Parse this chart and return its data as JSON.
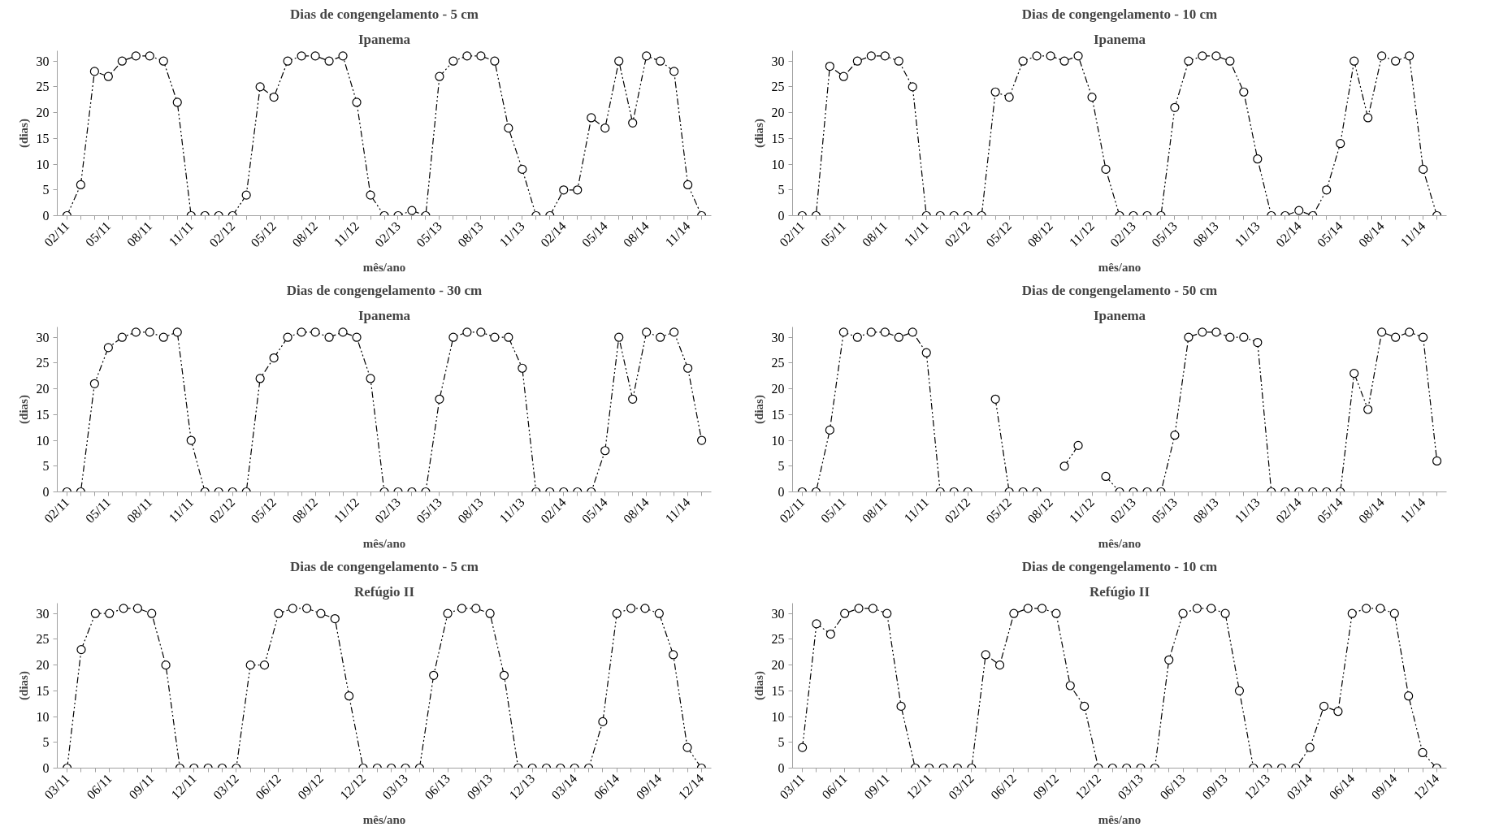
{
  "chart_data": [
    {
      "type": "line",
      "title": "Dias de congengelamento - 5 cm",
      "subtitle": "Ipanema",
      "xlabel": "mês/ano",
      "ylabel": "(dias)",
      "categories": [
        "02/11",
        null,
        null,
        "05/11",
        null,
        null,
        "08/11",
        null,
        null,
        "11/11",
        null,
        null,
        "02/12",
        null,
        null,
        "05/12",
        null,
        null,
        "08/12",
        null,
        null,
        "11/12",
        null,
        null,
        "02/13",
        null,
        null,
        "05/13",
        null,
        null,
        "08/13",
        null,
        null,
        "11/13",
        null,
        null,
        "02/14",
        null,
        null,
        "05/14",
        null,
        null,
        "08/14",
        null,
        null,
        "11/14",
        null
      ],
      "series": [
        {
          "color": "#000000",
          "values": [
            0,
            6,
            28,
            27,
            30,
            31,
            31,
            30,
            22,
            0,
            0,
            0,
            0,
            4,
            25,
            23,
            30,
            31,
            31,
            30,
            31,
            22,
            4,
            0,
            0,
            1,
            0,
            27,
            30,
            31,
            31,
            30,
            17,
            9,
            0,
            0,
            5,
            5,
            19,
            17,
            30,
            18,
            31,
            30,
            28,
            6,
            0
          ]
        }
      ],
      "ylim": [
        0,
        32
      ],
      "yticks": [
        0,
        5,
        10,
        15,
        20,
        25,
        30
      ],
      "marker": "circle",
      "line_style": "dashed"
    },
    {
      "type": "line",
      "title": "Dias de congengelamento - 10 cm",
      "subtitle": "Ipanema",
      "xlabel": "mês/ano",
      "ylabel": "(dias)",
      "categories": [
        "02/11",
        null,
        null,
        "05/11",
        null,
        null,
        "08/11",
        null,
        null,
        "11/11",
        null,
        null,
        "02/12",
        null,
        null,
        "05/12",
        null,
        null,
        "08/12",
        null,
        null,
        "11/12",
        null,
        null,
        "02/13",
        null,
        null,
        "05/13",
        null,
        null,
        "08/13",
        null,
        null,
        "11/13",
        null,
        null,
        "02/14",
        null,
        null,
        "05/14",
        null,
        null,
        "08/14",
        null,
        null,
        "11/14",
        null
      ],
      "series": [
        {
          "color": "#000000",
          "values": [
            0,
            0,
            29,
            27,
            30,
            31,
            31,
            30,
            25,
            0,
            0,
            0,
            0,
            0,
            24,
            23,
            30,
            31,
            31,
            30,
            31,
            23,
            9,
            0,
            0,
            0,
            0,
            21,
            30,
            31,
            31,
            30,
            24,
            11,
            0,
            0,
            1,
            0,
            5,
            14,
            30,
            19,
            31,
            30,
            31,
            9,
            0
          ]
        }
      ],
      "ylim": [
        0,
        32
      ],
      "yticks": [
        0,
        5,
        10,
        15,
        20,
        25,
        30
      ],
      "marker": "circle",
      "line_style": "dashed"
    },
    {
      "type": "line",
      "title": "Dias de congengelamento - 30 cm",
      "subtitle": "Ipanema",
      "xlabel": "mês/ano",
      "ylabel": "(dias)",
      "categories": [
        "02/11",
        null,
        null,
        "05/11",
        null,
        null,
        "08/11",
        null,
        null,
        "11/11",
        null,
        null,
        "02/12",
        null,
        null,
        "05/12",
        null,
        null,
        "08/12",
        null,
        null,
        "11/12",
        null,
        null,
        "02/13",
        null,
        null,
        "05/13",
        null,
        null,
        "08/13",
        null,
        null,
        "11/13",
        null,
        null,
        "02/14",
        null,
        null,
        "05/14",
        null,
        null,
        "08/14",
        null,
        null,
        "11/14",
        null
      ],
      "series": [
        {
          "color": "#000000",
          "values": [
            0,
            0,
            21,
            28,
            30,
            31,
            31,
            30,
            31,
            10,
            0,
            0,
            0,
            0,
            22,
            26,
            30,
            31,
            31,
            30,
            31,
            30,
            22,
            0,
            0,
            0,
            0,
            18,
            30,
            31,
            31,
            30,
            30,
            24,
            0,
            0,
            0,
            0,
            0,
            8,
            30,
            18,
            31,
            30,
            31,
            24,
            10
          ]
        }
      ],
      "ylim": [
        0,
        32
      ],
      "yticks": [
        0,
        5,
        10,
        15,
        20,
        25,
        30
      ],
      "marker": "circle",
      "line_style": "dashed"
    },
    {
      "type": "line",
      "title": "Dias de congengelamento - 50 cm",
      "subtitle": "Ipanema",
      "xlabel": "mês/ano",
      "ylabel": "(dias)",
      "categories": [
        "02/11",
        null,
        null,
        "05/11",
        null,
        null,
        "08/11",
        null,
        null,
        "11/11",
        null,
        null,
        "02/12",
        null,
        null,
        "05/12",
        null,
        null,
        "08/12",
        null,
        null,
        "11/12",
        null,
        null,
        "02/13",
        null,
        null,
        "05/13",
        null,
        null,
        "08/13",
        null,
        null,
        "11/13",
        null,
        null,
        "02/14",
        null,
        null,
        "05/14",
        null,
        null,
        "08/14",
        null,
        null,
        "11/14",
        null
      ],
      "series": [
        {
          "color": "#000000",
          "values": [
            0,
            0,
            12,
            31,
            30,
            31,
            31,
            30,
            31,
            27,
            0,
            0,
            0,
            null,
            18,
            0,
            0,
            0,
            null,
            5,
            9,
            null,
            3,
            0,
            0,
            0,
            0,
            11,
            30,
            31,
            31,
            30,
            30,
            29,
            0,
            0,
            0,
            0,
            0,
            0,
            23,
            16,
            31,
            30,
            31,
            30,
            6
          ]
        }
      ],
      "ylim": [
        0,
        32
      ],
      "yticks": [
        0,
        5,
        10,
        15,
        20,
        25,
        30
      ],
      "marker": "circle",
      "line_style": "dashed"
    },
    {
      "type": "line",
      "title": "Dias de congengelamento - 5 cm",
      "subtitle": "Refúgio II",
      "xlabel": "mês/ano",
      "ylabel": "(dias)",
      "categories": [
        "03/11",
        null,
        null,
        "06/11",
        null,
        null,
        "09/11",
        null,
        null,
        "12/11",
        null,
        null,
        "03/12",
        null,
        null,
        "06/12",
        null,
        null,
        "09/12",
        null,
        null,
        "12/12",
        null,
        null,
        "03/13",
        null,
        null,
        "06/13",
        null,
        null,
        "09/13",
        null,
        null,
        "12/13",
        null,
        null,
        "03/14",
        null,
        null,
        "06/14",
        null,
        null,
        "09/14",
        null,
        null,
        "12/14"
      ],
      "series": [
        {
          "color": "#000000",
          "values": [
            0,
            23,
            30,
            30,
            31,
            31,
            30,
            20,
            0,
            0,
            0,
            0,
            0,
            20,
            20,
            30,
            31,
            31,
            30,
            29,
            14,
            0,
            0,
            0,
            0,
            0,
            18,
            30,
            31,
            31,
            30,
            18,
            0,
            0,
            0,
            0,
            0,
            0,
            9,
            30,
            31,
            31,
            30,
            22,
            4,
            0
          ]
        }
      ],
      "ylim": [
        0,
        32
      ],
      "yticks": [
        0,
        5,
        10,
        15,
        20,
        25,
        30
      ],
      "marker": "circle",
      "line_style": "dashed"
    },
    {
      "type": "line",
      "title": "Dias de congengelamento - 10 cm",
      "subtitle": "Refúgio II",
      "xlabel": "mês/ano",
      "ylabel": "(dias)",
      "categories": [
        "03/11",
        null,
        null,
        "06/11",
        null,
        null,
        "09/11",
        null,
        null,
        "12/11",
        null,
        null,
        "03/12",
        null,
        null,
        "06/12",
        null,
        null,
        "09/12",
        null,
        null,
        "12/12",
        null,
        null,
        "03/13",
        null,
        null,
        "06/13",
        null,
        null,
        "09/13",
        null,
        null,
        "12/13",
        null,
        null,
        "03/14",
        null,
        null,
        "06/14",
        null,
        null,
        "09/14",
        null,
        null,
        "12/14"
      ],
      "series": [
        {
          "color": "#000000",
          "values": [
            4,
            28,
            26,
            30,
            31,
            31,
            30,
            12,
            0,
            0,
            0,
            0,
            0,
            22,
            20,
            30,
            31,
            31,
            30,
            16,
            12,
            0,
            0,
            0,
            0,
            0,
            21,
            30,
            31,
            31,
            30,
            15,
            0,
            0,
            0,
            0,
            4,
            12,
            11,
            30,
            31,
            31,
            30,
            14,
            3,
            0
          ]
        }
      ],
      "ylim": [
        0,
        32
      ],
      "yticks": [
        0,
        5,
        10,
        15,
        20,
        25,
        30
      ],
      "marker": "circle",
      "line_style": "dashed"
    }
  ]
}
